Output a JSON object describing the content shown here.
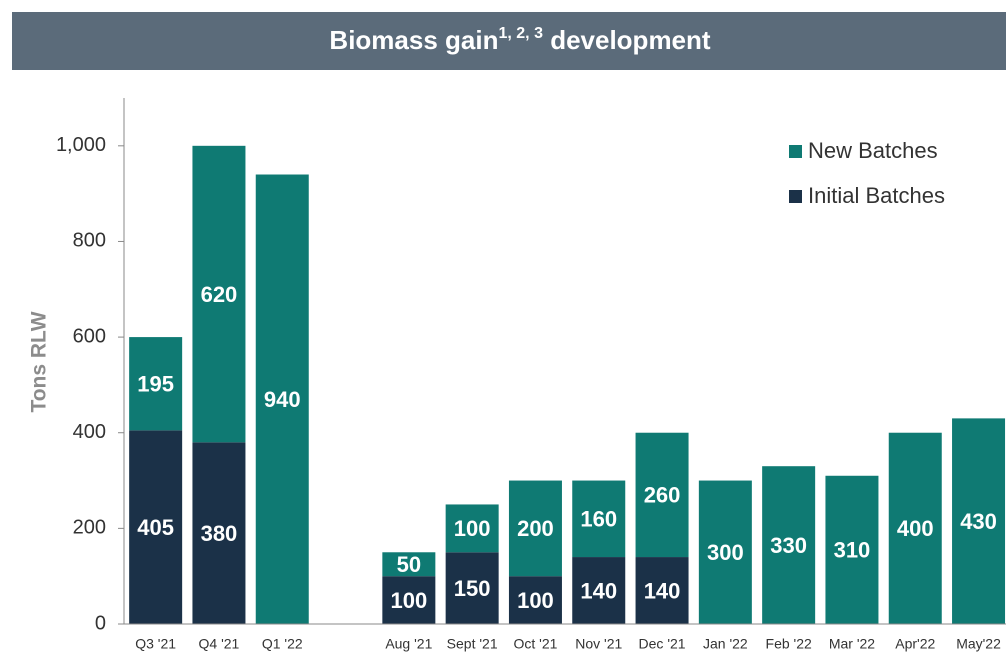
{
  "chart_data": {
    "type": "stacked_bar",
    "title": "Biomass gain",
    "title_superscript": "1, 2, 3",
    "title_suffix": " development",
    "y_axis_label": "Tons RLW",
    "categories": [
      "Q3 '21",
      "Q4 '21",
      "Q1 '22",
      null,
      "Aug '21",
      "Sept '21",
      "Oct '21",
      "Nov '21",
      "Dec '21",
      "Jan '22",
      "Feb '22",
      "Mar '22",
      "Apr'22",
      "May'22"
    ],
    "series": [
      {
        "name": "Initial Batches",
        "color": "#1b3148",
        "values": [
          405,
          380,
          null,
          null,
          100,
          150,
          100,
          140,
          140,
          null,
          null,
          null,
          null,
          null
        ]
      },
      {
        "name": "New Batches",
        "color": "#0f7a73",
        "values": [
          195,
          620,
          940,
          null,
          50,
          100,
          200,
          160,
          260,
          300,
          330,
          310,
          400,
          430
        ]
      }
    ],
    "ylim": [
      0,
      1100
    ],
    "yticks": [
      0,
      200,
      400,
      600,
      800,
      {
        "value": 1000,
        "label": "1,000"
      }
    ],
    "legend": "top-right"
  }
}
